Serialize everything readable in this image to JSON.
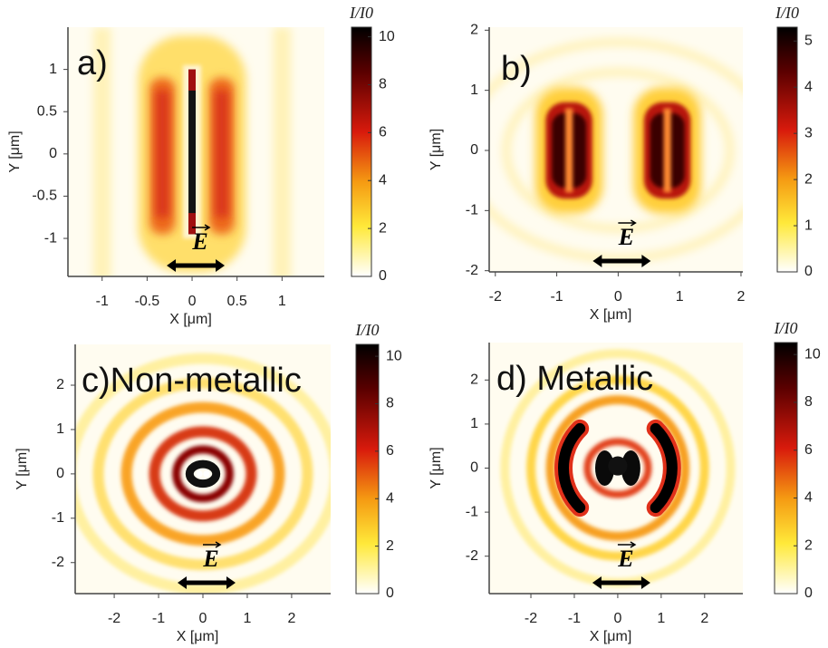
{
  "chart_data": [
    {
      "type": "heatmap",
      "panel_label": "a)",
      "annotation": "E",
      "x_label": "X [μm]",
      "y_label": "Y [μm]",
      "xlim": [
        -1.38,
        1.47
      ],
      "ylim": [
        -1.45,
        1.5
      ],
      "xticks": [
        -1,
        -0.5,
        0,
        0.5,
        1
      ],
      "yticks": [
        -1,
        -0.5,
        0,
        0.5,
        1
      ],
      "colorbar": {
        "label": "I/I0",
        "lim": [
          0,
          10.4
        ],
        "ticks": [
          0,
          2,
          4,
          6,
          8,
          10
        ]
      }
    },
    {
      "type": "heatmap",
      "panel_label": "b)",
      "annotation": "E",
      "x_label": "X [μm]",
      "y_label": "Y [μm]",
      "xlim": [
        -2.1,
        2.03
      ],
      "ylim": [
        -2.02,
        2.05
      ],
      "xticks": [
        -2,
        -1,
        0,
        1,
        2
      ],
      "yticks": [
        -2,
        -1,
        0,
        1,
        2
      ],
      "colorbar": {
        "label": "I/I0",
        "lim": [
          0,
          5.3
        ],
        "ticks": [
          0,
          1,
          2,
          3,
          4,
          5
        ]
      }
    },
    {
      "type": "heatmap",
      "panel_label": "c)Non-metallic",
      "annotation": "E",
      "x_label": "X [μm]",
      "y_label": "Y [μm]",
      "xlim": [
        -2.88,
        2.88
      ],
      "ylim": [
        -2.7,
        2.92
      ],
      "xticks": [
        -2,
        -1,
        0,
        1,
        2
      ],
      "yticks": [
        -2,
        -1,
        0,
        1,
        2
      ],
      "colorbar": {
        "label": "I/I0",
        "lim": [
          0,
          10.5
        ],
        "ticks": [
          0,
          2,
          4,
          6,
          8,
          10
        ]
      }
    },
    {
      "type": "heatmap",
      "panel_label": "d) Metallic",
      "annotation": "E",
      "x_label": "X [μm]",
      "y_label": "Y [μm]",
      "xlim": [
        -2.96,
        2.88
      ],
      "ylim": [
        -2.85,
        2.85
      ],
      "xticks": [
        -2,
        -1,
        0,
        1,
        2
      ],
      "yticks": [
        -2,
        -1,
        0,
        1,
        2
      ],
      "colorbar": {
        "label": "I/I0",
        "lim": [
          0,
          10.5
        ],
        "ticks": [
          0,
          2,
          4,
          6,
          8,
          10
        ]
      }
    }
  ]
}
